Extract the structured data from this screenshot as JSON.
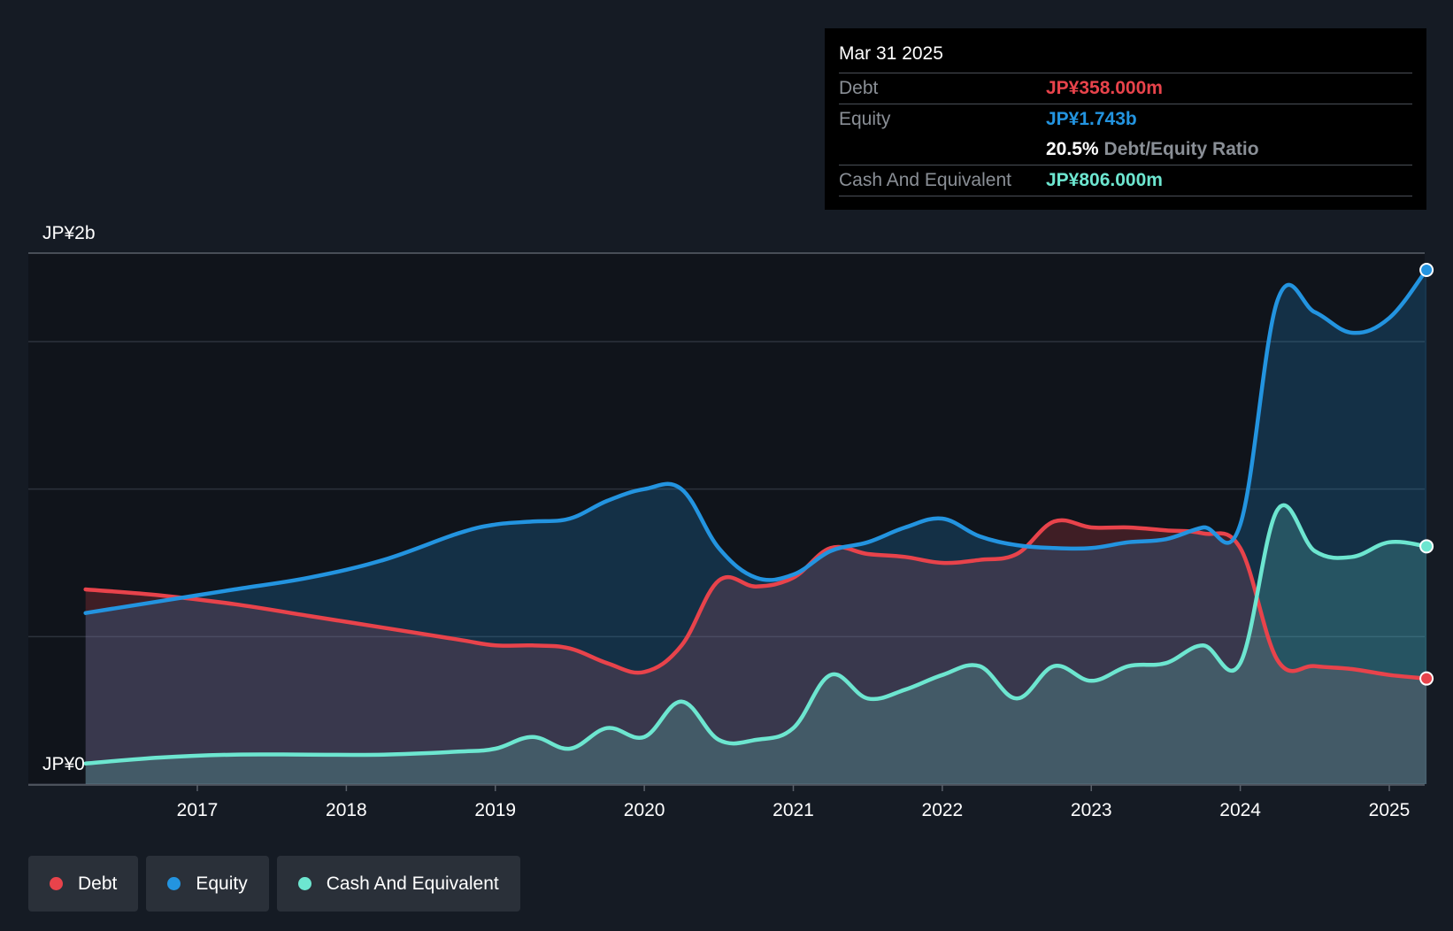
{
  "colors": {
    "debt": "#e8434b",
    "equity": "#2394e0",
    "cash": "#6de6d0",
    "background": "#151b24"
  },
  "tooltip": {
    "date": "Mar 31 2025",
    "debt_label": "Debt",
    "debt_value": "JP¥358.000m",
    "equity_label": "Equity",
    "equity_value": "JP¥1.743b",
    "ratio_value": "20.5%",
    "ratio_label": "Debt/Equity Ratio",
    "cash_label": "Cash And Equivalent",
    "cash_value": "JP¥806.000m"
  },
  "legend": [
    {
      "name": "Debt",
      "color": "#e8434b"
    },
    {
      "name": "Equity",
      "color": "#2394e0"
    },
    {
      "name": "Cash And Equivalent",
      "color": "#6de6d0"
    }
  ],
  "chart_data": {
    "type": "area",
    "x_ticks": [
      "2017",
      "2018",
      "2019",
      "2020",
      "2021",
      "2022",
      "2023",
      "2024",
      "2025"
    ],
    "y_tick_labels": [
      "JP¥0",
      "JP¥2b"
    ],
    "ylim": [
      0,
      1.8
    ],
    "y_unit": "JP¥b",
    "grid": true,
    "legend_position": "bottom-left",
    "series": [
      {
        "name": "Debt",
        "color": "#e8434b",
        "x": [
          2016.25,
          2016.75,
          2017.25,
          2017.75,
          2018.25,
          2018.75,
          2019.0,
          2019.25,
          2019.5,
          2019.75,
          2020.0,
          2020.25,
          2020.5,
          2020.75,
          2021.0,
          2021.25,
          2021.5,
          2021.75,
          2022.0,
          2022.25,
          2022.5,
          2022.75,
          2023.0,
          2023.25,
          2023.5,
          2023.75,
          2024.0,
          2024.25,
          2024.5,
          2024.75,
          2025.0,
          2025.25
        ],
        "values": [
          0.66,
          0.64,
          0.61,
          0.57,
          0.53,
          0.49,
          0.47,
          0.47,
          0.46,
          0.41,
          0.38,
          0.47,
          0.69,
          0.67,
          0.7,
          0.8,
          0.78,
          0.77,
          0.75,
          0.76,
          0.78,
          0.89,
          0.87,
          0.87,
          0.86,
          0.85,
          0.8,
          0.42,
          0.4,
          0.39,
          0.37,
          0.358
        ]
      },
      {
        "name": "Equity",
        "color": "#2394e0",
        "x": [
          2016.25,
          2016.75,
          2017.25,
          2017.75,
          2018.25,
          2018.75,
          2019.0,
          2019.25,
          2019.5,
          2019.75,
          2020.0,
          2020.25,
          2020.5,
          2020.75,
          2021.0,
          2021.25,
          2021.5,
          2021.75,
          2022.0,
          2022.25,
          2022.5,
          2022.75,
          2023.0,
          2023.25,
          2023.5,
          2023.75,
          2024.0,
          2024.25,
          2024.5,
          2024.75,
          2025.0,
          2025.25
        ],
        "values": [
          0.58,
          0.62,
          0.66,
          0.7,
          0.76,
          0.85,
          0.88,
          0.89,
          0.9,
          0.96,
          1.0,
          1.0,
          0.8,
          0.7,
          0.71,
          0.79,
          0.82,
          0.87,
          0.9,
          0.84,
          0.81,
          0.8,
          0.8,
          0.82,
          0.83,
          0.87,
          0.88,
          1.64,
          1.6,
          1.53,
          1.58,
          1.743
        ]
      },
      {
        "name": "Cash And Equivalent",
        "color": "#6de6d0",
        "x": [
          2016.25,
          2016.75,
          2017.25,
          2017.75,
          2018.25,
          2018.75,
          2019.0,
          2019.25,
          2019.5,
          2019.75,
          2020.0,
          2020.25,
          2020.5,
          2020.75,
          2021.0,
          2021.25,
          2021.5,
          2021.75,
          2022.0,
          2022.25,
          2022.5,
          2022.75,
          2023.0,
          2023.25,
          2023.5,
          2023.75,
          2024.0,
          2024.25,
          2024.5,
          2024.75,
          2025.0,
          2025.25
        ],
        "values": [
          0.07,
          0.09,
          0.1,
          0.1,
          0.1,
          0.11,
          0.12,
          0.16,
          0.12,
          0.19,
          0.16,
          0.28,
          0.15,
          0.15,
          0.19,
          0.37,
          0.29,
          0.32,
          0.37,
          0.4,
          0.29,
          0.4,
          0.35,
          0.4,
          0.41,
          0.47,
          0.41,
          0.93,
          0.79,
          0.77,
          0.82,
          0.806
        ]
      }
    ]
  }
}
